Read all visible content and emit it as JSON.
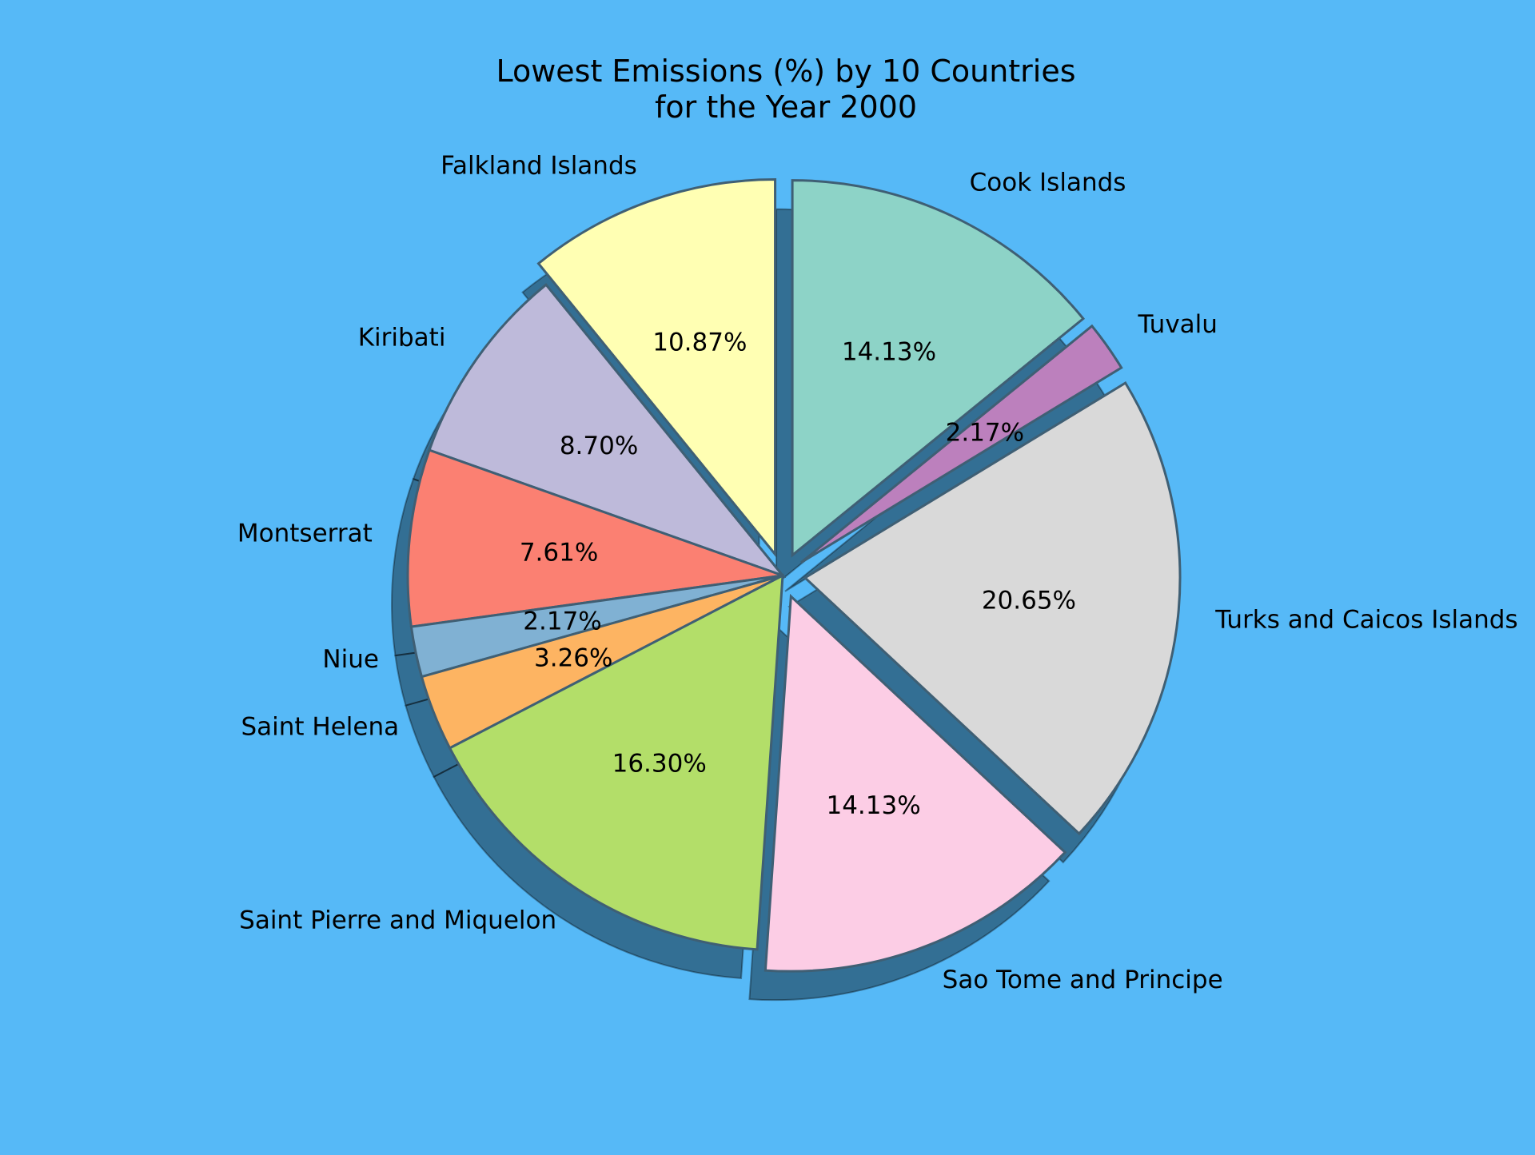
{
  "chart_data": {
    "type": "pie",
    "title_lines": [
      "Lowest Emissions (%) by 10 Countries",
      "for the Year 2000"
    ],
    "background": "#56b9f7",
    "shadow": true,
    "start_angle_deg": 90,
    "direction": "counterclockwise",
    "slices": [
      {
        "label": "Falkland Islands",
        "percent_label": "10.87%",
        "value": 10.87,
        "color": "#ffffb3",
        "exploded": true
      },
      {
        "label": "Kiribati",
        "percent_label": "8.70%",
        "value": 8.7,
        "color": "#bebada",
        "exploded": false
      },
      {
        "label": "Montserrat",
        "percent_label": "7.61%",
        "value": 7.61,
        "color": "#fb8072",
        "exploded": false
      },
      {
        "label": "Niue",
        "percent_label": "2.17%",
        "value": 2.17,
        "color": "#80b1d3",
        "exploded": false
      },
      {
        "label": "Saint Helena",
        "percent_label": "3.26%",
        "value": 3.26,
        "color": "#fdb462",
        "exploded": false
      },
      {
        "label": "Saint Pierre and Miquelon",
        "percent_label": "16.30%",
        "value": 16.3,
        "color": "#b3de69",
        "exploded": false
      },
      {
        "label": "Sao Tome and Principe",
        "percent_label": "14.13%",
        "value": 14.13,
        "color": "#fccde5",
        "exploded": true
      },
      {
        "label": "Turks and Caicos Islands",
        "percent_label": "20.65%",
        "value": 20.65,
        "color": "#d9d9d9",
        "exploded": true
      },
      {
        "label": "Tuvalu",
        "percent_label": "2.17%",
        "value": 2.17,
        "color": "#bc80bd",
        "exploded": true
      },
      {
        "label": "Cook Islands",
        "percent_label": "14.13%",
        "value": 14.13,
        "color": "#8dd3c7",
        "exploded": true
      }
    ]
  }
}
